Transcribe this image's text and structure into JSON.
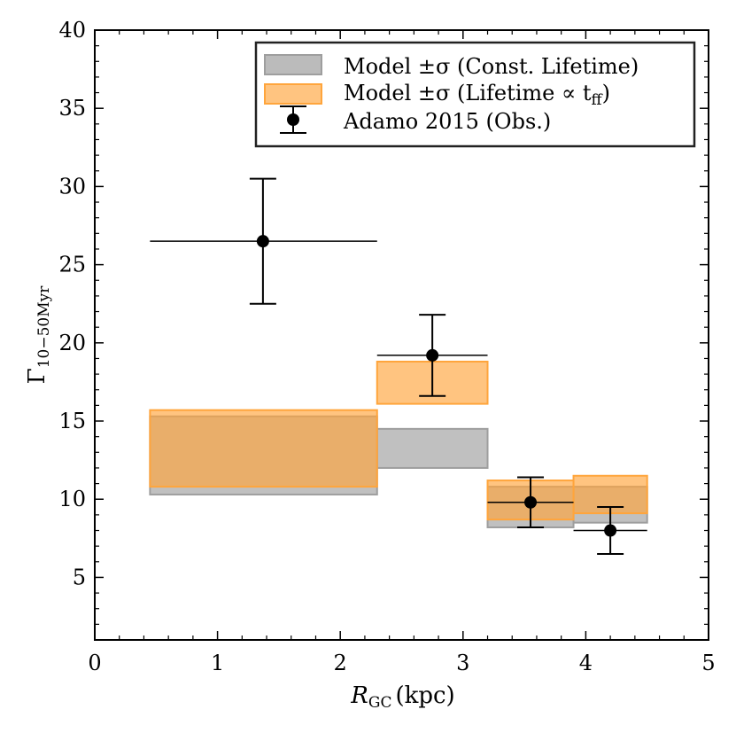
{
  "chart_data": {
    "type": "step-band-errorbar",
    "xlabel": {
      "main": "R",
      "sub": "GC",
      "unit": "(kpc)"
    },
    "ylabel": {
      "main": "Γ",
      "sub": "10−50Myr"
    },
    "xlim": [
      0,
      5
    ],
    "ylim": [
      1,
      40
    ],
    "xticks": [
      0,
      1,
      2,
      3,
      4,
      5
    ],
    "yticks": [
      5,
      10,
      15,
      20,
      25,
      30,
      35,
      40
    ],
    "xtick_labels": [
      "0",
      "1",
      "2",
      "3",
      "4",
      "5"
    ],
    "ytick_labels": [
      "5",
      "10",
      "15",
      "20",
      "25",
      "30",
      "35",
      "40"
    ],
    "series": [
      {
        "name": "Model ±σ (Const. Lifetime)",
        "legend_main": "Model ±σ (Const. Lifetime)",
        "kind": "band",
        "color": "#9e9e9e",
        "bins": [
          {
            "x0": 0.45,
            "x1": 2.3,
            "low": 10.3,
            "high": 15.3
          },
          {
            "x0": 2.3,
            "x1": 3.2,
            "low": 12.0,
            "high": 14.5
          },
          {
            "x0": 3.2,
            "x1": 3.9,
            "low": 8.2,
            "high": 10.8
          },
          {
            "x0": 3.9,
            "x1": 4.5,
            "low": 8.5,
            "high": 10.8
          }
        ]
      },
      {
        "name": "Model ±σ (Lifetime ∝ t_ff)",
        "legend_main": "Model ±σ (Lifetime ∝ t",
        "legend_sub": "ff",
        "legend_tail": ")",
        "kind": "band",
        "color": "#ffa53c",
        "bins": [
          {
            "x0": 0.45,
            "x1": 2.3,
            "low": 10.8,
            "high": 15.7
          },
          {
            "x0": 2.3,
            "x1": 3.2,
            "low": 16.1,
            "high": 18.8
          },
          {
            "x0": 3.2,
            "x1": 3.9,
            "low": 8.7,
            "high": 11.2
          },
          {
            "x0": 3.9,
            "x1": 4.5,
            "low": 9.1,
            "high": 11.5
          }
        ]
      },
      {
        "name": "Adamo 2015 (Obs.)",
        "legend_main": "Adamo 2015 (Obs.)",
        "kind": "errorbar",
        "color": "#000000",
        "points": [
          {
            "x": 1.37,
            "y": 26.5,
            "xerr_low": 0.92,
            "xerr_high": 0.93,
            "yerr_low": 4.0,
            "yerr_high": 4.0
          },
          {
            "x": 2.75,
            "y": 19.2,
            "xerr_low": 0.45,
            "xerr_high": 0.45,
            "yerr_low": 2.6,
            "yerr_high": 2.6
          },
          {
            "x": 3.55,
            "y": 9.8,
            "xerr_low": 0.35,
            "xerr_high": 0.35,
            "yerr_low": 1.6,
            "yerr_high": 1.6
          },
          {
            "x": 4.2,
            "y": 8.0,
            "xerr_low": 0.3,
            "xerr_high": 0.3,
            "yerr_low": 1.5,
            "yerr_high": 1.5
          }
        ]
      }
    ],
    "legend_position": "top-right"
  }
}
